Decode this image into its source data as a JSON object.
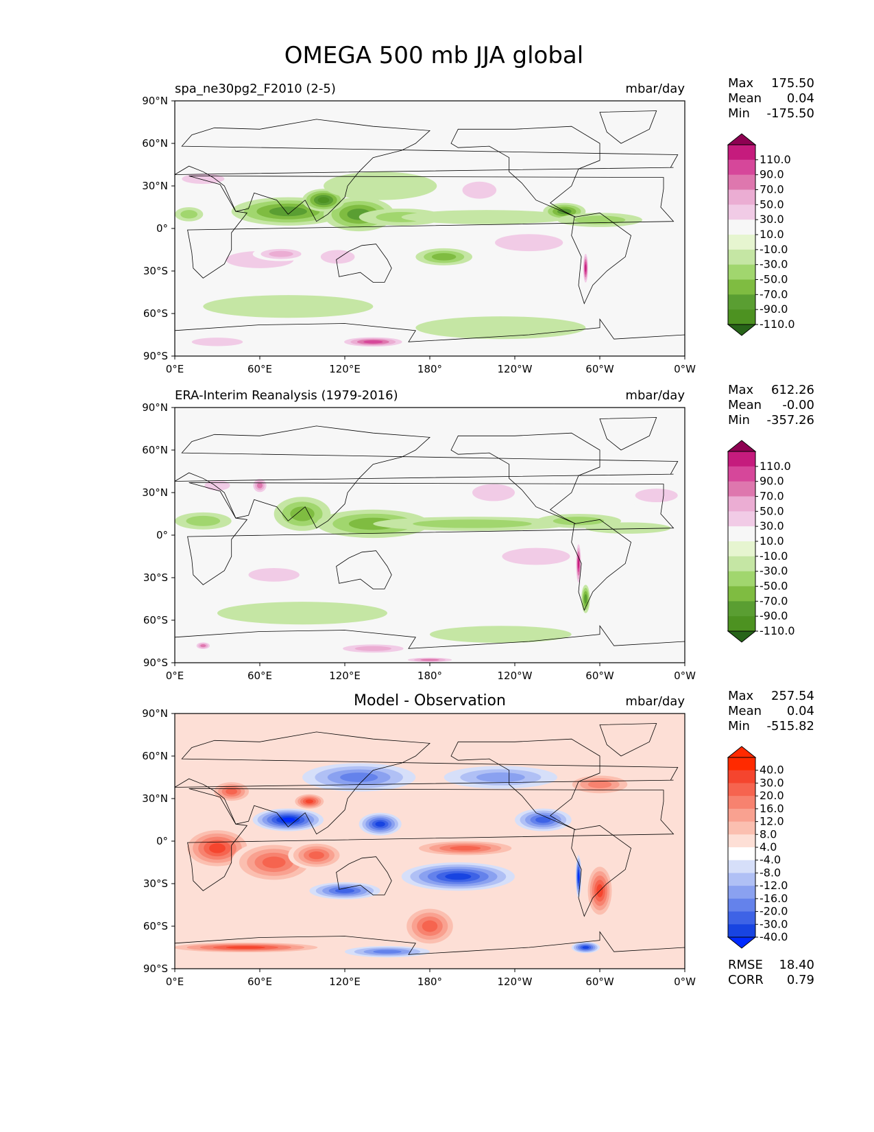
{
  "figure": {
    "title": "OMEGA 500 mb JJA global"
  },
  "chart_data": [
    {
      "type": "heatmap",
      "title": "spa_ne30pg2_F2010 (2-5)",
      "units": "mbar/day",
      "stats": [
        {
          "label": "Max",
          "value": "175.50"
        },
        {
          "label": "Mean",
          "value": "0.04"
        },
        {
          "label": "Min",
          "value": "-175.50"
        }
      ],
      "colorbar_labels": [
        "110.0",
        "90.0",
        "70.0",
        "50.0",
        "30.0",
        "10.0",
        "-10.0",
        "-30.0",
        "-50.0",
        "-70.0",
        "-90.0",
        "-110.0"
      ],
      "colors_high_to_low": [
        "#8e0152",
        "#c51b7d",
        "#d6479a",
        "#de77ae",
        "#ebadd3",
        "#f1cbe6",
        "#f7f7f7",
        "#e6f5d0",
        "#c5e6a4",
        "#a1d66e",
        "#7fbc41",
        "#5a9e32",
        "#4d9221",
        "#276419"
      ],
      "xticks": [
        "0°E",
        "60°E",
        "120°E",
        "180°",
        "120°W",
        "60°W",
        "0°W"
      ],
      "yticks": [
        "90°N",
        "60°N",
        "30°N",
        "0°",
        "30°S",
        "60°S",
        "90°S"
      ],
      "xlim": [
        0,
        360
      ],
      "ylim": [
        -90,
        90
      ],
      "features": [
        {
          "lon": 80,
          "lat": 12,
          "v": -90,
          "rx": 40,
          "ry": 10
        },
        {
          "lon": 130,
          "lat": 10,
          "v": -80,
          "rx": 25,
          "ry": 12
        },
        {
          "lon": 105,
          "lat": 20,
          "v": -100,
          "rx": 15,
          "ry": 8
        },
        {
          "lon": 160,
          "lat": 8,
          "v": -35,
          "rx": 30,
          "ry": 6
        },
        {
          "lon": 220,
          "lat": 8,
          "v": -25,
          "rx": 60,
          "ry": 5
        },
        {
          "lon": 275,
          "lat": 12,
          "v": -90,
          "rx": 15,
          "ry": 6
        },
        {
          "lon": 300,
          "lat": 6,
          "v": -50,
          "rx": 30,
          "ry": 5
        },
        {
          "lon": 10,
          "lat": 10,
          "v": -40,
          "rx": 10,
          "ry": 5
        },
        {
          "lon": 145,
          "lat": 30,
          "v": -30,
          "rx": 40,
          "ry": 10
        },
        {
          "lon": 190,
          "lat": -20,
          "v": -60,
          "rx": 20,
          "ry": 6
        },
        {
          "lon": 80,
          "lat": -55,
          "v": -30,
          "rx": 60,
          "ry": 8
        },
        {
          "lon": 20,
          "lat": 35,
          "v": 45,
          "rx": 25,
          "ry": 6
        },
        {
          "lon": 215,
          "lat": 27,
          "v": 50,
          "rx": 20,
          "ry": 10
        },
        {
          "lon": 330,
          "lat": 25,
          "v": 30,
          "rx": 30,
          "ry": 8
        },
        {
          "lon": 60,
          "lat": -22,
          "v": 35,
          "rx": 40,
          "ry": 10
        },
        {
          "lon": 75,
          "lat": -18,
          "v": 60,
          "rx": 20,
          "ry": 5
        },
        {
          "lon": 115,
          "lat": -20,
          "v": 40,
          "rx": 20,
          "ry": 8
        },
        {
          "lon": 250,
          "lat": -10,
          "v": 35,
          "rx": 40,
          "ry": 10
        },
        {
          "lon": 290,
          "lat": -28,
          "v": 130,
          "rx": 2,
          "ry": 12
        },
        {
          "lon": 140,
          "lat": -80,
          "v": 100,
          "rx": 25,
          "ry": 4
        },
        {
          "lon": 30,
          "lat": -80,
          "v": 40,
          "rx": 30,
          "ry": 5
        },
        {
          "lon": 230,
          "lat": -70,
          "v": -25,
          "rx": 60,
          "ry": 8
        }
      ]
    },
    {
      "type": "heatmap",
      "title": "ERA-Interim Reanalysis (1979-2016)",
      "units": "mbar/day",
      "stats": [
        {
          "label": "Max",
          "value": "612.26"
        },
        {
          "label": "Mean",
          "value": "-0.00"
        },
        {
          "label": "Min",
          "value": "-357.26"
        }
      ],
      "colorbar_labels": [
        "110.0",
        "90.0",
        "70.0",
        "50.0",
        "30.0",
        "10.0",
        "-10.0",
        "-30.0",
        "-50.0",
        "-70.0",
        "-90.0",
        "-110.0"
      ],
      "colors_high_to_low": [
        "#8e0152",
        "#c51b7d",
        "#d6479a",
        "#de77ae",
        "#ebadd3",
        "#f1cbe6",
        "#f7f7f7",
        "#e6f5d0",
        "#c5e6a4",
        "#a1d66e",
        "#7fbc41",
        "#5a9e32",
        "#4d9221",
        "#276419"
      ],
      "xticks": [
        "0°E",
        "60°E",
        "120°E",
        "180°",
        "120°W",
        "60°W",
        "0°W"
      ],
      "yticks": [
        "90°N",
        "60°N",
        "30°N",
        "0°",
        "30°S",
        "60°S",
        "90°S"
      ],
      "xlim": [
        0,
        360
      ],
      "ylim": [
        -90,
        90
      ],
      "features": [
        {
          "lon": 20,
          "lat": 10,
          "v": -50,
          "rx": 20,
          "ry": 6
        },
        {
          "lon": 90,
          "lat": 15,
          "v": -60,
          "rx": 20,
          "ry": 12
        },
        {
          "lon": 140,
          "lat": 8,
          "v": -70,
          "rx": 40,
          "ry": 10
        },
        {
          "lon": 210,
          "lat": 8,
          "v": -35,
          "rx": 70,
          "ry": 5
        },
        {
          "lon": 285,
          "lat": 10,
          "v": -45,
          "rx": 30,
          "ry": 5
        },
        {
          "lon": 320,
          "lat": 5,
          "v": -30,
          "rx": 30,
          "ry": 4
        },
        {
          "lon": 60,
          "lat": 35,
          "v": 80,
          "rx": 6,
          "ry": 6
        },
        {
          "lon": 30,
          "lat": 35,
          "v": 45,
          "rx": 15,
          "ry": 6
        },
        {
          "lon": 225,
          "lat": 30,
          "v": 40,
          "rx": 25,
          "ry": 10
        },
        {
          "lon": 340,
          "lat": 28,
          "v": 35,
          "rx": 25,
          "ry": 8
        },
        {
          "lon": 70,
          "lat": -28,
          "v": 35,
          "rx": 30,
          "ry": 8
        },
        {
          "lon": 255,
          "lat": -15,
          "v": 35,
          "rx": 40,
          "ry": 10
        },
        {
          "lon": 285,
          "lat": -20,
          "v": 150,
          "rx": 2,
          "ry": 16
        },
        {
          "lon": 290,
          "lat": -45,
          "v": -80,
          "rx": 3,
          "ry": 10
        },
        {
          "lon": 140,
          "lat": -80,
          "v": 60,
          "rx": 30,
          "ry": 4
        },
        {
          "lon": 20,
          "lat": -78,
          "v": 80,
          "rx": 6,
          "ry": 3
        },
        {
          "lon": 180,
          "lat": -88,
          "v": 80,
          "rx": 20,
          "ry": 2
        },
        {
          "lon": 90,
          "lat": -55,
          "v": -30,
          "rx": 60,
          "ry": 8
        },
        {
          "lon": 230,
          "lat": -70,
          "v": -20,
          "rx": 50,
          "ry": 6
        }
      ]
    },
    {
      "type": "heatmap",
      "title": "Model - Observation",
      "units": "mbar/day",
      "stats": [
        {
          "label": "Max",
          "value": "257.54"
        },
        {
          "label": "Mean",
          "value": "0.04"
        },
        {
          "label": "Min",
          "value": "-515.82"
        }
      ],
      "extra_stats": [
        {
          "label": "RMSE",
          "value": "18.40"
        },
        {
          "label": "CORR",
          "value": "0.79"
        }
      ],
      "colorbar_labels": [
        "40.0",
        "30.0",
        "20.0",
        "16.0",
        "12.0",
        "8.0",
        "4.0",
        "-4.0",
        "-8.0",
        "-12.0",
        "-16.0",
        "-20.0",
        "-30.0",
        "-40.0"
      ],
      "colors_high_to_low": [
        "#ff2a00",
        "#ff2a00",
        "#f5452e",
        "#f6644f",
        "#f7826f",
        "#f9a190",
        "#fbbfb0",
        "#fddfd6",
        "#ffffff",
        "#d6dff9",
        "#b0c0f5",
        "#8aa1f0",
        "#6482eb",
        "#3e63e6",
        "#1844e1",
        "#002aff"
      ],
      "xticks": [
        "0°E",
        "60°E",
        "120°E",
        "180°",
        "120°W",
        "60°W",
        "0°W"
      ],
      "yticks": [
        "90°N",
        "60°N",
        "30°N",
        "0°",
        "30°S",
        "60°S",
        "90°S"
      ],
      "xlim": [
        0,
        360
      ],
      "ylim": [
        -90,
        90
      ],
      "features": [
        {
          "lon": 80,
          "lat": 15,
          "v": -45,
          "rx": 25,
          "ry": 8
        },
        {
          "lon": 95,
          "lat": 28,
          "v": 40,
          "rx": 12,
          "ry": 6
        },
        {
          "lon": 145,
          "lat": 12,
          "v": -40,
          "rx": 15,
          "ry": 8
        },
        {
          "lon": 200,
          "lat": -25,
          "v": -40,
          "rx": 40,
          "ry": 10
        },
        {
          "lon": 260,
          "lat": 15,
          "v": -30,
          "rx": 20,
          "ry": 8
        },
        {
          "lon": 30,
          "lat": -5,
          "v": 35,
          "rx": 25,
          "ry": 15
        },
        {
          "lon": 70,
          "lat": -15,
          "v": 30,
          "rx": 30,
          "ry": 15
        },
        {
          "lon": 100,
          "lat": -10,
          "v": 25,
          "rx": 20,
          "ry": 10
        },
        {
          "lon": 205,
          "lat": -5,
          "v": 30,
          "rx": 40,
          "ry": 6
        },
        {
          "lon": 300,
          "lat": -35,
          "v": 40,
          "rx": 10,
          "ry": 20
        },
        {
          "lon": 285,
          "lat": -25,
          "v": -45,
          "rx": 2,
          "ry": 15
        },
        {
          "lon": 180,
          "lat": -60,
          "v": 30,
          "rx": 20,
          "ry": 15
        },
        {
          "lon": 50,
          "lat": -75,
          "v": 40,
          "rx": 60,
          "ry": 4
        },
        {
          "lon": 150,
          "lat": -78,
          "v": -20,
          "rx": 30,
          "ry": 4
        },
        {
          "lon": 290,
          "lat": -75,
          "v": -40,
          "rx": 10,
          "ry": 4
        },
        {
          "lon": 40,
          "lat": 35,
          "v": 30,
          "rx": 15,
          "ry": 8
        },
        {
          "lon": 130,
          "lat": 45,
          "v": -20,
          "rx": 40,
          "ry": 10
        },
        {
          "lon": 300,
          "lat": 40,
          "v": 20,
          "rx": 25,
          "ry": 8
        },
        {
          "lon": 230,
          "lat": 45,
          "v": -15,
          "rx": 40,
          "ry": 8
        },
        {
          "lon": 120,
          "lat": -35,
          "v": -25,
          "rx": 25,
          "ry": 6
        }
      ]
    }
  ]
}
